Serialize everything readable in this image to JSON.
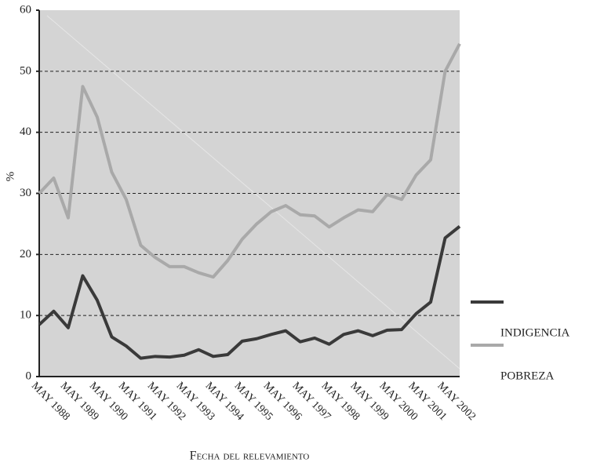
{
  "chart_data": {
    "type": "line",
    "x_label": "Fecha del relevamiento",
    "y_label": "%",
    "categories": [
      "MAY 1988",
      null,
      "MAY 1989",
      null,
      "MAY 1990",
      null,
      "MAY 1991",
      null,
      "MAY 1992",
      null,
      "MAY 1993",
      null,
      "MAY 1994",
      null,
      "MAY 1995",
      null,
      "MAY 1996",
      null,
      "MAY 1997",
      null,
      "MAY 1998",
      null,
      "MAY 1999",
      null,
      "MAY 2000",
      null,
      "MAY 2001",
      null,
      "MAY 2002",
      null
    ],
    "series": [
      {
        "name": "INDIGENCIA",
        "color": "#3a3a3a",
        "values": [
          8.5,
          10.7,
          8,
          16.5,
          12.5,
          6.5,
          5,
          3,
          3.3,
          3.2,
          3.5,
          4.4,
          3.3,
          3.6,
          5.8,
          6.2,
          6.9,
          7.5,
          5.7,
          6.3,
          5.3,
          6.9,
          7.5,
          6.7,
          7.6,
          7.7,
          10.3,
          12.2,
          22.7,
          24.6
        ]
      },
      {
        "name": "POBREZA",
        "color": "#a9a9a9",
        "values": [
          30,
          32.5,
          26,
          47.5,
          42.5,
          33.5,
          29,
          21.5,
          19.5,
          18,
          18,
          17,
          16.3,
          19,
          22.5,
          25,
          27,
          28,
          26.5,
          26.3,
          24.5,
          26,
          27.3,
          27,
          29.8,
          29,
          33,
          35.5,
          50,
          54.5
        ]
      }
    ],
    "ylim": [
      0,
      60
    ],
    "yticks": [
      0,
      10,
      20,
      30,
      40,
      50,
      60
    ],
    "grid": true
  }
}
